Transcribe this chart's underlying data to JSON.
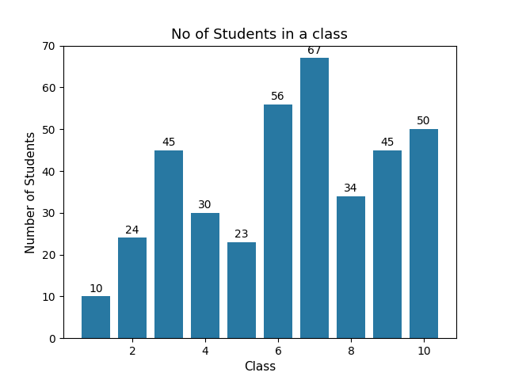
{
  "x_values": [
    1,
    2,
    3,
    4,
    5,
    6,
    7,
    8,
    9,
    10
  ],
  "y_values": [
    10,
    24,
    45,
    30,
    23,
    56,
    67,
    34,
    45,
    50
  ],
  "bar_color": "#2878a2",
  "title": "No of Students in a class",
  "xlabel": "Class",
  "ylabel": "Number of Students",
  "ylim": [
    0,
    70
  ],
  "xticks": [
    2,
    4,
    6,
    8,
    10
  ],
  "title_fontsize": 13,
  "label_fontsize": 11,
  "tick_fontsize": 10,
  "annotation_fontsize": 10
}
